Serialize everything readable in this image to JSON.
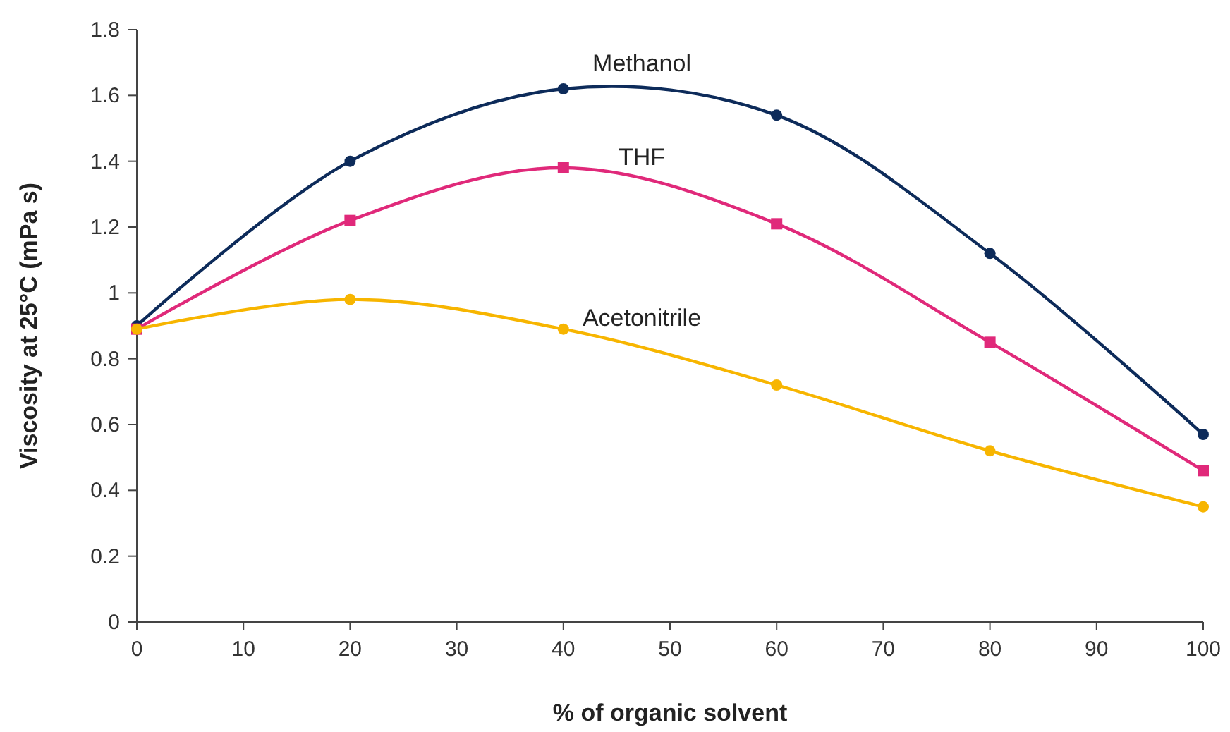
{
  "chart_data": {
    "type": "line",
    "xlabel": "% of organic solvent",
    "ylabel": "Viscosity at 25°C (mPa s)",
    "x": [
      0,
      20,
      40,
      60,
      80,
      100
    ],
    "series": [
      {
        "name": "Methanol",
        "color": "#0d2b5a",
        "marker": "circle",
        "values": [
          0.9,
          1.4,
          1.62,
          1.54,
          1.12,
          0.57
        ]
      },
      {
        "name": "THF",
        "color": "#e0297a",
        "marker": "square",
        "values": [
          0.89,
          1.22,
          1.38,
          1.21,
          0.85,
          0.46
        ]
      },
      {
        "name": "Acetonitrile",
        "color": "#f7b500",
        "marker": "circle",
        "values": [
          0.89,
          0.98,
          0.89,
          0.72,
          0.52,
          0.35
        ]
      }
    ],
    "xlim": [
      0,
      100
    ],
    "xticks": [
      0,
      10,
      20,
      30,
      40,
      50,
      60,
      70,
      80,
      90,
      100
    ],
    "ylim": [
      0,
      1.8
    ],
    "yticks": [
      0,
      0.2,
      0.4,
      0.6,
      0.8,
      1,
      1.2,
      1.4,
      1.6,
      1.8
    ],
    "grid": false,
    "line_style": "solid"
  }
}
